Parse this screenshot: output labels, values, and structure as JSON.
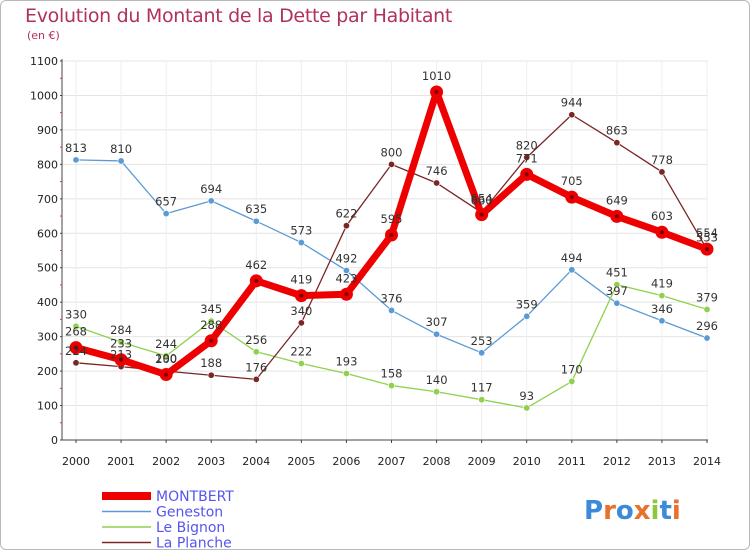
{
  "title": "Evolution du Montant de la Dette par Habitant",
  "subtitle": "(en €)",
  "logo_text": "Proxiti",
  "chart_data": {
    "type": "line",
    "title": "Evolution du Montant de la Dette par Habitant",
    "ylabel": "(en €)",
    "x": [
      "2000",
      "2001",
      "2002",
      "2003",
      "2004",
      "2005",
      "2006",
      "2007",
      "2008",
      "2009",
      "2010",
      "2011",
      "2012",
      "2013",
      "2014"
    ],
    "ylim": [
      0,
      1100
    ],
    "yticks": [
      0,
      100,
      200,
      300,
      400,
      500,
      600,
      700,
      800,
      900,
      1000,
      1100
    ],
    "legend_position": "bottom-left",
    "series": [
      {
        "name": "MONTBERT",
        "color": "#ee0000",
        "values": [
          268,
          233,
          190,
          288,
          462,
          419,
          423,
          595,
          1010,
          654,
          771,
          705,
          649,
          603,
          554
        ]
      },
      {
        "name": "Geneston",
        "color": "#5b9bd5",
        "values": [
          813,
          810,
          657,
          694,
          635,
          573,
          492,
          376,
          307,
          253,
          359,
          494,
          397,
          346,
          296
        ]
      },
      {
        "name": "Le Bignon",
        "color": "#8fd14f",
        "values": [
          330,
          284,
          244,
          345,
          256,
          222,
          193,
          158,
          140,
          117,
          93,
          170,
          451,
          419,
          379
        ]
      },
      {
        "name": "La Planche",
        "color": "#7b2525",
        "values": [
          224,
          213,
          200,
          188,
          176,
          340,
          622,
          800,
          746,
          660,
          820,
          944,
          863,
          778,
          553
        ]
      }
    ]
  }
}
